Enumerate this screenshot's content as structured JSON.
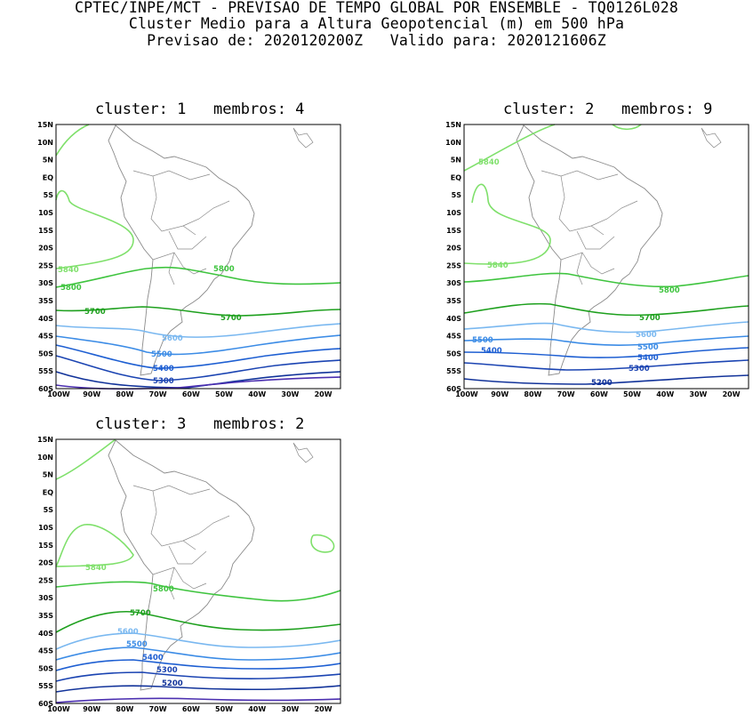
{
  "header": {
    "line1": "CPTEC/INPE/MCT - PREVISAO DE TEMPO GLOBAL POR ENSEMBLE - TQ0126L028",
    "line2": "Cluster Medio para a Altura Geopotencial (m) em 500 hPa",
    "line3": "Previsao de: 2020120200Z   Valido para: 2020121606Z"
  },
  "axes": {
    "lat_labels": [
      "15N",
      "10N",
      "5N",
      "EQ",
      "5S",
      "10S",
      "15S",
      "20S",
      "25S",
      "30S",
      "35S",
      "40S",
      "45S",
      "50S",
      "55S",
      "60S"
    ],
    "lon_labels": [
      "100W",
      "90W",
      "80W",
      "70W",
      "60W",
      "50W",
      "40W",
      "30W",
      "20W"
    ]
  },
  "colors": {
    "c5840": "#7fe06b",
    "c5800": "#3fc43f",
    "c5700": "#1ea01e",
    "c5600": "#7ab8f0",
    "c5500": "#3c8ce6",
    "c5400": "#1e5fd2",
    "c5300": "#1b44b2",
    "c5200": "#12339a",
    "c5100": "#4b2fb0"
  },
  "panels": [
    {
      "title": "cluster: 1   membros: 4",
      "contour_labels": [
        {
          "text": "5840",
          "level": "c5840"
        },
        {
          "text": "5800",
          "level": "c5800"
        },
        {
          "text": "5800",
          "level": "c5800"
        },
        {
          "text": "5700",
          "level": "c5700"
        },
        {
          "text": "5700",
          "level": "c5700"
        },
        {
          "text": "5600",
          "level": "c5600"
        },
        {
          "text": "5500",
          "level": "c5500"
        },
        {
          "text": "5400",
          "level": "c5400"
        },
        {
          "text": "5300",
          "level": "c5300"
        }
      ]
    },
    {
      "title": "cluster: 2   membros: 9",
      "contour_labels": [
        {
          "text": "5840",
          "level": "c5840"
        },
        {
          "text": "5840",
          "level": "c5840"
        },
        {
          "text": "5800",
          "level": "c5800"
        },
        {
          "text": "5700",
          "level": "c5700"
        },
        {
          "text": "5600",
          "level": "c5600"
        },
        {
          "text": "5500",
          "level": "c5500"
        },
        {
          "text": "5500",
          "level": "c5500"
        },
        {
          "text": "5400",
          "level": "c5400"
        },
        {
          "text": "5400",
          "level": "c5400"
        },
        {
          "text": "5300",
          "level": "c5300"
        },
        {
          "text": "5200",
          "level": "c5200"
        }
      ]
    },
    {
      "title": "cluster: 3   membros: 2",
      "contour_labels": [
        {
          "text": "5840",
          "level": "c5840"
        },
        {
          "text": "5800",
          "level": "c5800"
        },
        {
          "text": "5700",
          "level": "c5700"
        },
        {
          "text": "5600",
          "level": "c5600"
        },
        {
          "text": "5500",
          "level": "c5500"
        },
        {
          "text": "5400",
          "level": "c5400"
        },
        {
          "text": "5300",
          "level": "c5300"
        },
        {
          "text": "5200",
          "level": "c5200"
        }
      ]
    }
  ]
}
